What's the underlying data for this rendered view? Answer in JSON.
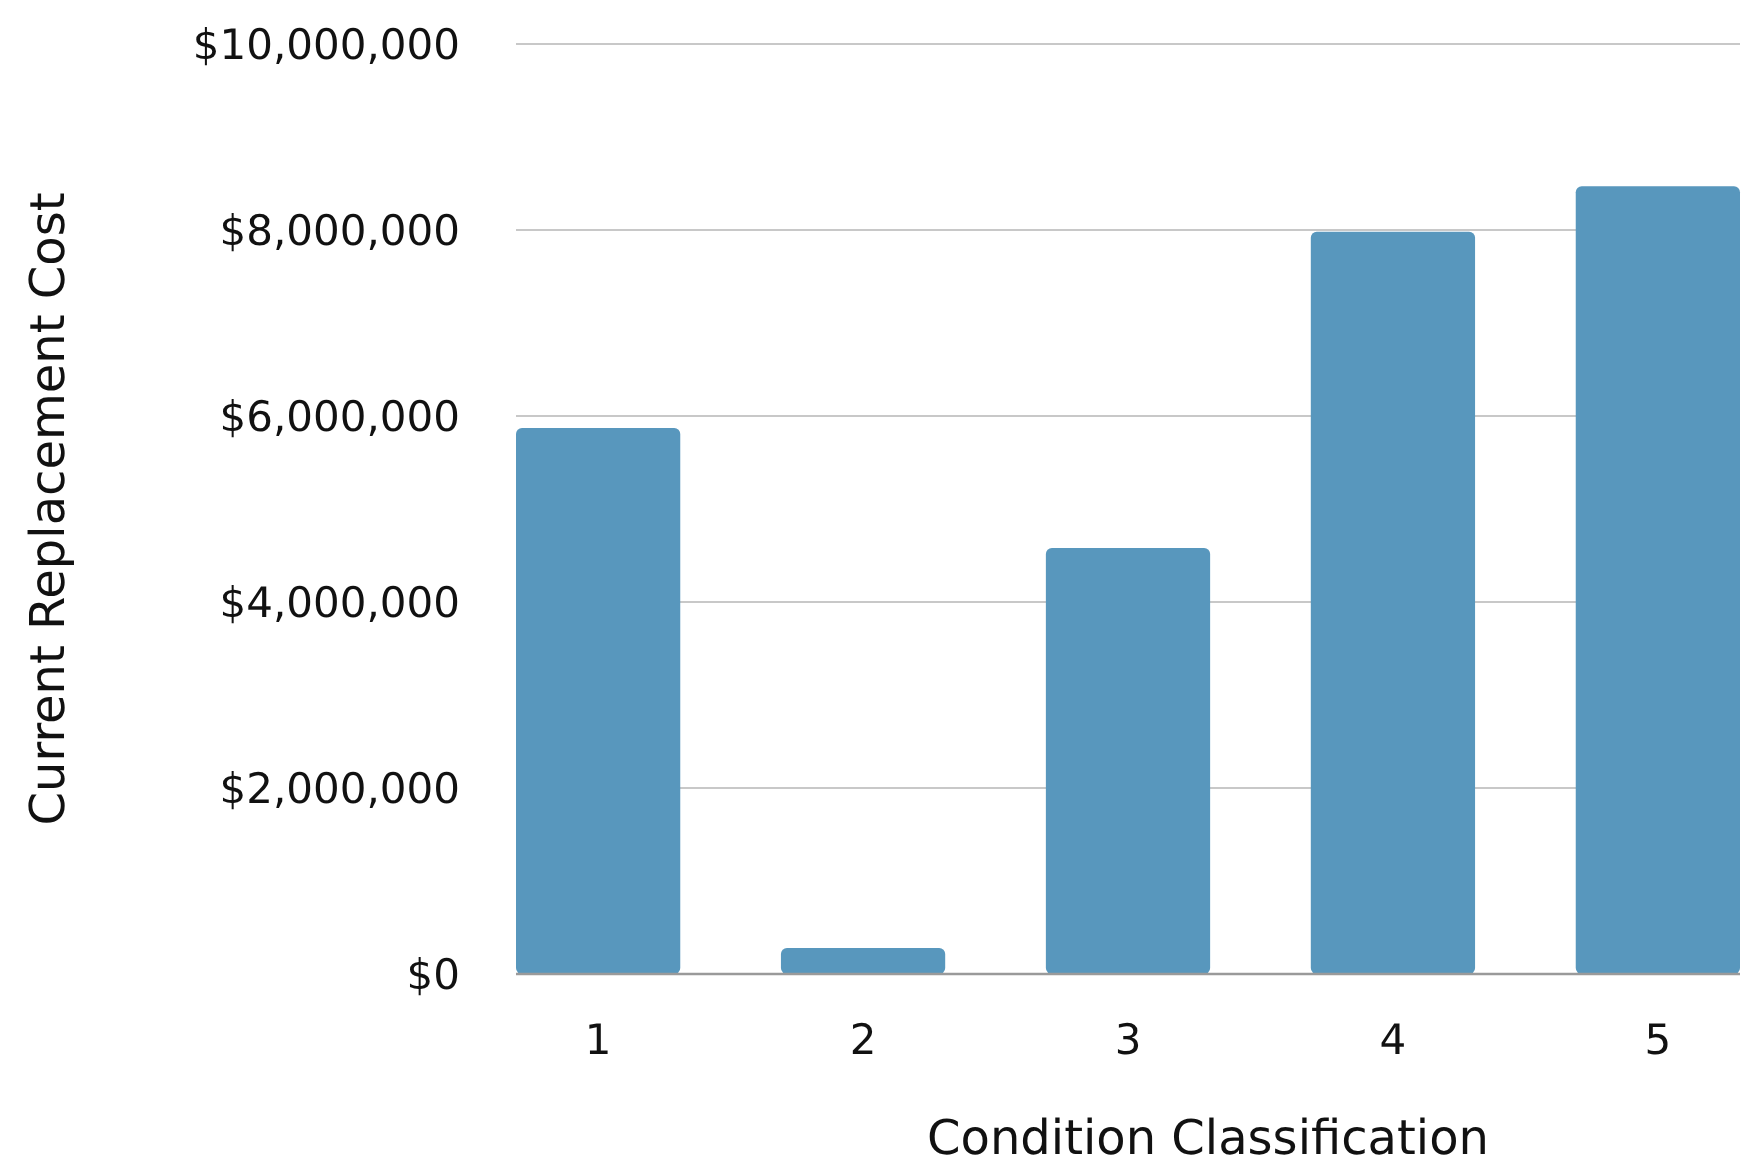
{
  "chart_data": {
    "type": "bar",
    "xlabel": "Condition Classification",
    "ylabel": "Current Replacement Cost",
    "categories": [
      "1",
      "2",
      "3",
      "4",
      "5"
    ],
    "values": [
      5870000,
      280000,
      4580000,
      7980000,
      8470000
    ],
    "color": "#5897bd",
    "ylim": [
      0,
      10000000
    ],
    "yticks": [
      {
        "value": 0,
        "label": "$0"
      },
      {
        "value": 2000000,
        "label": "$2,000,000"
      },
      {
        "value": 4000000,
        "label": "$4,000,000"
      },
      {
        "value": 6000000,
        "label": "$6,000,000"
      },
      {
        "value": 8000000,
        "label": "$8,000,000"
      },
      {
        "value": 10000000,
        "label": "$10,000,000"
      }
    ],
    "grid": "y"
  }
}
